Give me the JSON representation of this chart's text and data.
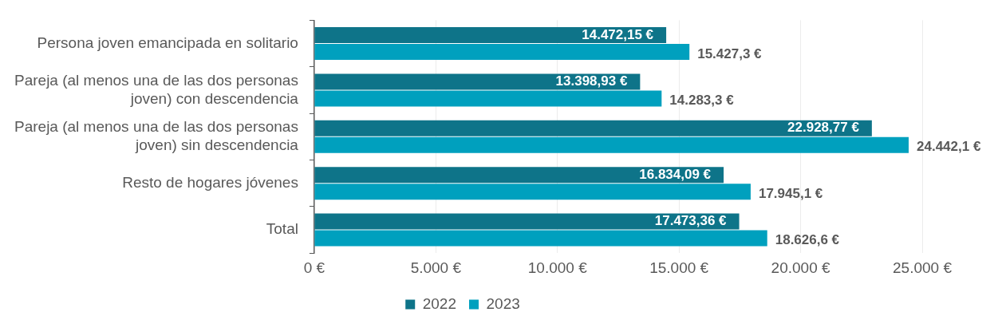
{
  "chart_data": {
    "type": "bar",
    "orientation": "horizontal",
    "categories": [
      "Persona joven emancipada en solitario",
      "Pareja (al menos una de las dos personas joven) con descendencia",
      "Pareja (al menos una de las dos personas joven) sin descendencia",
      "Resto de hogares jóvenes",
      "Total"
    ],
    "series": [
      {
        "name": "2022",
        "color": "#0e7489",
        "values": [
          14472.15,
          13398.93,
          22928.77,
          16834.09,
          17473.36
        ],
        "value_labels": [
          "14.472,15 €",
          "13.398,93 €",
          "22.928,77 €",
          "16.834,09 €",
          "17.473,36 €"
        ]
      },
      {
        "name": "2023",
        "color": "#00a0be",
        "values": [
          15427.3,
          14283.3,
          24442.1,
          17945.1,
          18626.6
        ],
        "value_labels": [
          "15.427,3 €",
          "14.283,3 €",
          "24.442,1 €",
          "17.945,1 €",
          "18.626,6 €"
        ]
      }
    ],
    "xlim": [
      0,
      25000
    ],
    "xticks": [
      {
        "value": 0,
        "label": "0 €"
      },
      {
        "value": 5000,
        "label": "5.000 €"
      },
      {
        "value": 10000,
        "label": "10.000 €"
      },
      {
        "value": 15000,
        "label": "15.000 €"
      },
      {
        "value": 20000,
        "label": "20.000 €"
      },
      {
        "value": 25000,
        "label": "25.000 €"
      }
    ],
    "grid": "x",
    "legend": "bottom"
  }
}
